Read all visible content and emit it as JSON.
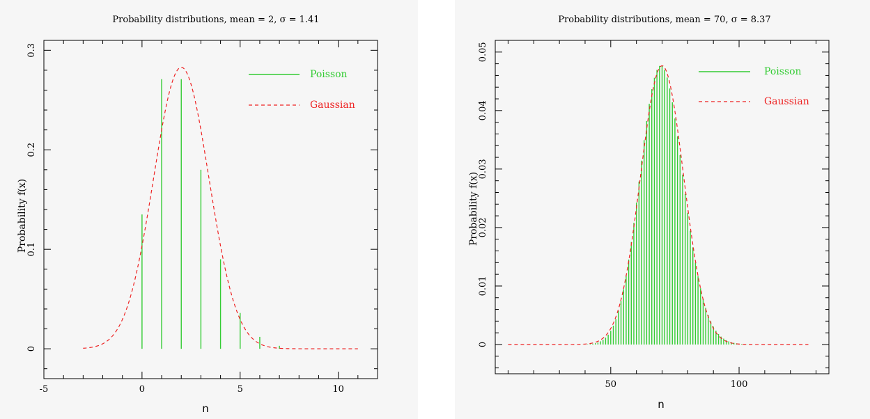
{
  "chart_data": [
    {
      "type": "line",
      "title": "Probability distributions, mean = 2, σ = 1.41",
      "xlabel": "n",
      "ylabel": "Probability f(x)",
      "xlim": [
        -5,
        12
      ],
      "ylim": [
        -0.03,
        0.31
      ],
      "xticks": [
        -5,
        0,
        5,
        10
      ],
      "yticks": [
        0,
        0.1,
        0.2,
        0.3
      ],
      "grid": false,
      "legend_position": "top-right",
      "colors": {
        "poisson": "#33cc33",
        "gaussian": "#ee2222"
      },
      "series": [
        {
          "name": "Poisson",
          "style": "stems",
          "x": [
            0,
            1,
            2,
            3,
            4,
            5,
            6,
            7
          ],
          "values": [
            0.135,
            0.271,
            0.271,
            0.18,
            0.09,
            0.036,
            0.012,
            0.003
          ]
        },
        {
          "name": "Gaussian",
          "style": "dashed",
          "mean": 2,
          "sigma": 1.41,
          "x_range": [
            -3,
            11
          ],
          "peak": 0.283
        }
      ]
    },
    {
      "type": "line",
      "title": "Probability distributions, mean = 70, σ = 8.37",
      "xlabel": "n",
      "ylabel": "Probability f(x)",
      "xlim": [
        5,
        135
      ],
      "ylim": [
        -0.005,
        0.052
      ],
      "xticks": [
        50,
        100
      ],
      "yticks": [
        0,
        0.01,
        0.02,
        0.03,
        0.04,
        0.05
      ],
      "grid": false,
      "legend_position": "top-right",
      "colors": {
        "poisson": "#33cc33",
        "gaussian": "#ee2222"
      },
      "series": [
        {
          "name": "Poisson",
          "style": "stems",
          "mean": 70,
          "x_range": [
            10,
            127
          ],
          "peak": 0.0476
        },
        {
          "name": "Gaussian",
          "style": "dashed",
          "mean": 70,
          "sigma": 8.37,
          "x_range": [
            10,
            127
          ],
          "peak": 0.0477
        }
      ]
    }
  ]
}
